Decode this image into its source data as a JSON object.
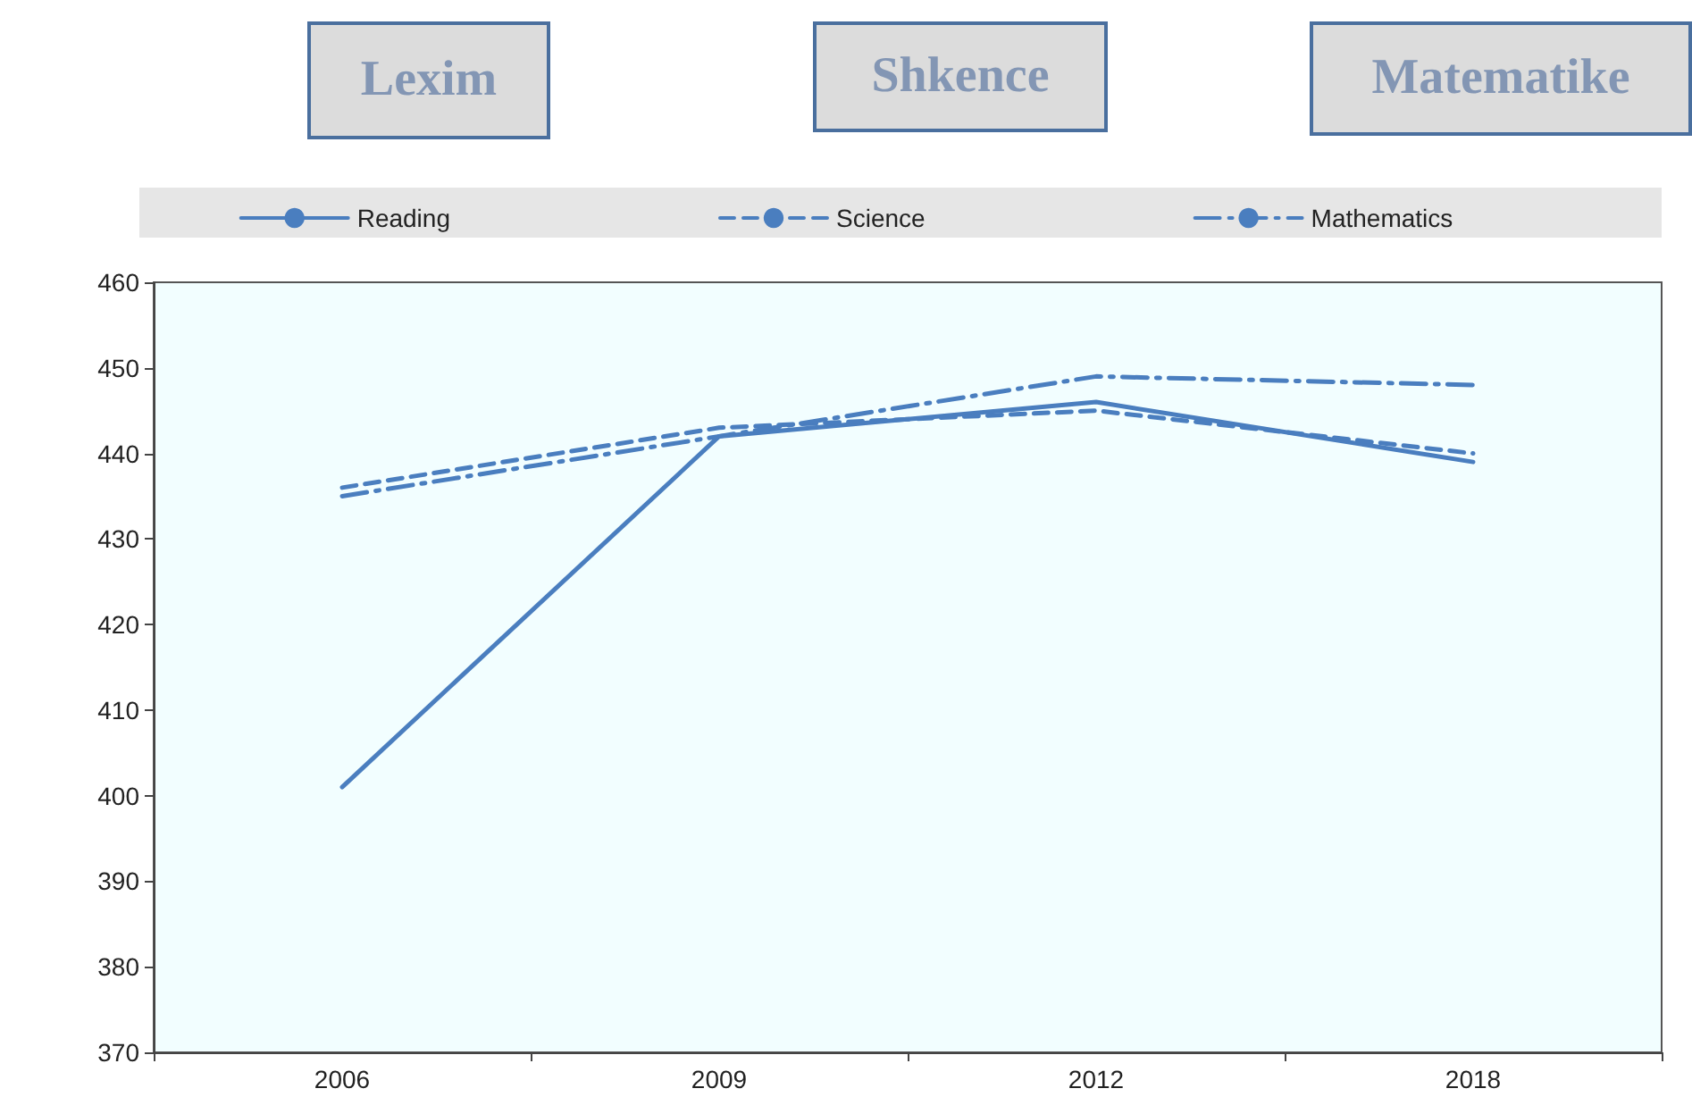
{
  "chart_data": {
    "type": "line",
    "categories": [
      "2006",
      "2009",
      "2012",
      "2018"
    ],
    "series": [
      {
        "name": "Reading",
        "color": "#4a7ebf",
        "line_style": "solid",
        "values": [
          401,
          442,
          446,
          439
        ]
      },
      {
        "name": "Science",
        "color": "#4a7ebf",
        "line_style": "dashed",
        "values": [
          436,
          443,
          445,
          440
        ]
      },
      {
        "name": "Mathematics",
        "color": "#4a7ebf",
        "line_style": "dashdot",
        "values": [
          435,
          442,
          449,
          448
        ]
      }
    ],
    "ylim": [
      370,
      460
    ],
    "yticks": [
      370,
      380,
      390,
      400,
      410,
      420,
      430,
      440,
      450,
      460
    ],
    "legend": "top",
    "marker": "none",
    "annotations": [
      "Lexim",
      "Shkence",
      "Matematike"
    ]
  }
}
